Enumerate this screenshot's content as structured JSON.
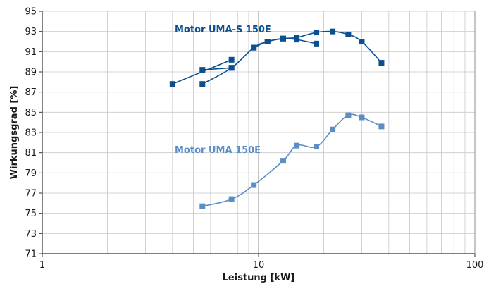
{
  "chart_data": {
    "type": "line",
    "xlabel": "Leistung [kW]",
    "ylabel": "Wirkungsgrad [%]",
    "x_scale": "log",
    "xlim": [
      1,
      100
    ],
    "ylim": [
      71,
      95
    ],
    "x_ticks": [
      1,
      10,
      100
    ],
    "y_ticks": [
      71,
      73,
      75,
      77,
      79,
      81,
      83,
      85,
      87,
      89,
      91,
      93,
      95
    ],
    "grid": true,
    "series": [
      {
        "name": "Motor UMA-S 150E",
        "color": "#0b4f8f",
        "segments": [
          {
            "x": [
              4,
              7.5
            ],
            "y": [
              87.8,
              90.2
            ]
          },
          {
            "x": [
              5.5,
              7.5,
              9.5,
              11,
              13,
              15,
              18.5,
              22,
              26,
              30,
              37
            ],
            "y": [
              87.8,
              89.4,
              91.4,
              92.0,
              92.3,
              92.4,
              92.9,
              93.0,
              92.7,
              92.0,
              89.9
            ]
          },
          {
            "x": [
              5.5,
              7.5
            ],
            "y": [
              89.2,
              89.4
            ]
          },
          {
            "x": [
              9.5,
              11,
              13,
              15,
              18.5
            ],
            "y": [
              91.4,
              92.0,
              92.3,
              92.2,
              91.8
            ]
          }
        ]
      },
      {
        "name": "Motor UMA 150E",
        "color": "#5b8ec4",
        "segments": [
          {
            "x": [
              5.5,
              7.5,
              9.5,
              13,
              15,
              18.5,
              22,
              26,
              30,
              37
            ],
            "y": [
              75.7,
              76.4,
              77.8,
              80.2,
              81.7,
              81.6,
              83.3,
              84.7,
              84.5,
              83.6
            ]
          }
        ]
      }
    ]
  }
}
